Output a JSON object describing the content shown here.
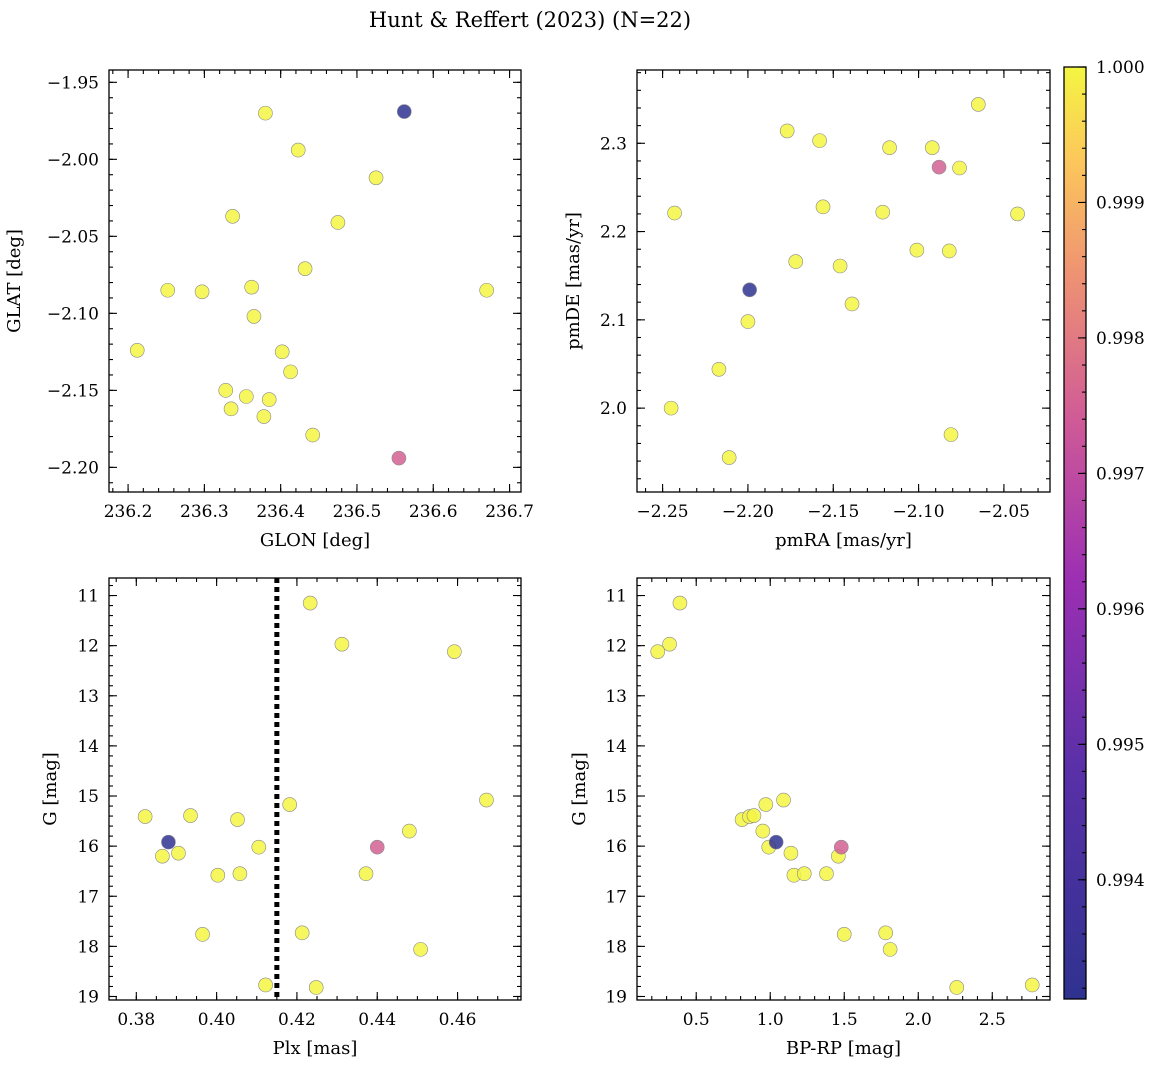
{
  "chart_data": {
    "title": "Hunt & Reffert (2023) (N=22)",
    "type": "scatter",
    "colorbar": {
      "min": 0.99312,
      "max": 1.0,
      "ticks": [
        "1.000",
        "0.999",
        "0.998",
        "0.997",
        "0.996",
        "0.995",
        "0.994"
      ],
      "tick_values": [
        1.0,
        0.999,
        0.998,
        0.997,
        0.996,
        0.995,
        0.994
      ],
      "colormap": "plasma"
    },
    "panels": [
      {
        "id": "glon-glat",
        "xlabel": "GLON [deg]",
        "ylabel": "GLAT [deg]",
        "xlim": [
          236.175,
          236.715
        ],
        "ylim": [
          -2.216,
          -1.942
        ],
        "y_inverted": false,
        "xticks": [
          236.2,
          236.3,
          236.4,
          236.5,
          236.6,
          236.7
        ],
        "xtick_labels": [
          "236.2",
          "236.3",
          "236.4",
          "236.5",
          "236.6",
          "236.7"
        ],
        "yticks": [
          -1.95,
          -2.0,
          -2.05,
          -2.1,
          -2.15,
          -2.2
        ],
        "ytick_labels": [
          "−1.95",
          "−2.00",
          "−2.05",
          "−2.10",
          "−2.15",
          "−2.20"
        ],
        "x": [
          236.562,
          236.555,
          236.38,
          236.423,
          236.525,
          236.337,
          236.475,
          236.432,
          236.252,
          236.297,
          236.362,
          236.67,
          236.365,
          236.212,
          236.402,
          236.413,
          236.328,
          236.355,
          236.385,
          236.335,
          236.378,
          236.442
        ],
        "y": [
          -1.969,
          -2.194,
          -1.97,
          -1.994,
          -2.012,
          -2.037,
          -2.041,
          -2.071,
          -2.085,
          -2.086,
          -2.083,
          -2.085,
          -2.102,
          -2.124,
          -2.125,
          -2.138,
          -2.15,
          -2.154,
          -2.156,
          -2.162,
          -2.167,
          -2.179
        ],
        "c": [
          0.99312,
          0.9975,
          1.0,
          1.0,
          1.0,
          1.0,
          1.0,
          1.0,
          1.0,
          1.0,
          1.0,
          1.0,
          1.0,
          1.0,
          1.0,
          1.0,
          1.0,
          1.0,
          1.0,
          1.0,
          1.0,
          1.0
        ]
      },
      {
        "id": "pmra-pmde",
        "xlabel": "pmRA [mas/yr]",
        "ylabel": "pmDE [mas/yr]",
        "xlim": [
          -2.265,
          -2.023
        ],
        "ylim": [
          1.905,
          2.383
        ],
        "y_inverted": false,
        "xticks": [
          -2.25,
          -2.2,
          -2.15,
          -2.1,
          -2.05
        ],
        "xtick_labels": [
          "−2.25",
          "−2.20",
          "−2.15",
          "−2.10",
          "−2.05"
        ],
        "yticks": [
          2.0,
          2.1,
          2.2,
          2.3
        ],
        "ytick_labels": [
          "2.0",
          "2.1",
          "2.2",
          "2.3"
        ],
        "x": [
          -2.199,
          -2.088,
          -2.065,
          -2.177,
          -2.158,
          -2.117,
          -2.092,
          -2.076,
          -2.243,
          -2.156,
          -2.121,
          -2.042,
          -2.101,
          -2.082,
          -2.172,
          -2.146,
          -2.139,
          -2.2,
          -2.217,
          -2.245,
          -2.081,
          -2.211
        ],
        "y": [
          2.134,
          2.273,
          2.344,
          2.314,
          2.303,
          2.295,
          2.295,
          2.272,
          2.221,
          2.228,
          2.222,
          2.22,
          2.179,
          2.178,
          2.166,
          2.161,
          2.118,
          2.098,
          2.044,
          2.0,
          1.97,
          1.944
        ],
        "c": [
          0.99312,
          0.9975,
          1.0,
          1.0,
          1.0,
          1.0,
          1.0,
          1.0,
          1.0,
          1.0,
          1.0,
          1.0,
          1.0,
          1.0,
          1.0,
          1.0,
          1.0,
          1.0,
          1.0,
          1.0,
          1.0,
          1.0
        ]
      },
      {
        "id": "plx-g",
        "xlabel": "Plx [mas]",
        "ylabel": "G [mag]",
        "xlim": [
          0.3732,
          0.4758
        ],
        "ylim": [
          10.65,
          19.07
        ],
        "y_inverted": true,
        "xticks": [
          0.38,
          0.4,
          0.42,
          0.44,
          0.46
        ],
        "xtick_labels": [
          "0.38",
          "0.40",
          "0.42",
          "0.44",
          "0.46"
        ],
        "yticks": [
          11,
          12,
          13,
          14,
          15,
          16,
          17,
          18,
          19
        ],
        "ytick_labels": [
          "11",
          "12",
          "13",
          "14",
          "15",
          "16",
          "17",
          "18",
          "19"
        ],
        "vline": 0.415,
        "x": [
          0.388,
          0.44,
          0.4233,
          0.4312,
          0.4592,
          0.3822,
          0.3935,
          0.4052,
          0.4182,
          0.4672,
          0.448,
          0.3865,
          0.3905,
          0.4105,
          0.4003,
          0.4058,
          0.4372,
          0.3965,
          0.4213,
          0.4508,
          0.4122,
          0.4248
        ],
        "y": [
          15.92,
          16.02,
          11.15,
          11.97,
          12.12,
          15.41,
          15.39,
          15.47,
          15.17,
          15.08,
          15.7,
          16.2,
          16.14,
          16.02,
          16.58,
          16.55,
          16.55,
          17.76,
          17.73,
          18.06,
          18.77,
          18.82
        ],
        "c": [
          0.99312,
          0.9975,
          1.0,
          1.0,
          1.0,
          1.0,
          1.0,
          1.0,
          1.0,
          1.0,
          1.0,
          1.0,
          1.0,
          1.0,
          1.0,
          1.0,
          1.0,
          1.0,
          1.0,
          1.0,
          1.0,
          1.0
        ]
      },
      {
        "id": "bprp-g",
        "xlabel": "BP-RP [mag]",
        "ylabel": "G [mag]",
        "xlim": [
          0.1,
          2.89
        ],
        "ylim": [
          10.65,
          19.07
        ],
        "y_inverted": true,
        "xticks": [
          0.5,
          1.0,
          1.5,
          2.0,
          2.5
        ],
        "xtick_labels": [
          "0.5",
          "1.0",
          "1.5",
          "2.0",
          "2.5"
        ],
        "yticks": [
          11,
          12,
          13,
          14,
          15,
          16,
          17,
          18,
          19
        ],
        "ytick_labels": [
          "11",
          "12",
          "13",
          "14",
          "15",
          "16",
          "17",
          "18",
          "19"
        ],
        "x": [
          1.04,
          1.48,
          0.39,
          0.32,
          0.24,
          0.81,
          0.86,
          0.89,
          0.97,
          1.09,
          0.95,
          0.99,
          1.14,
          1.46,
          1.16,
          1.23,
          1.38,
          1.5,
          1.78,
          1.81,
          2.26,
          2.77
        ],
        "y": [
          15.92,
          16.02,
          11.15,
          11.97,
          12.12,
          15.47,
          15.41,
          15.39,
          15.17,
          15.08,
          15.7,
          16.02,
          16.14,
          16.2,
          16.58,
          16.55,
          16.55,
          17.76,
          17.73,
          18.06,
          18.82,
          18.77
        ],
        "c": [
          0.99312,
          0.9975,
          1.0,
          1.0,
          1.0,
          1.0,
          1.0,
          1.0,
          1.0,
          1.0,
          1.0,
          1.0,
          1.0,
          1.0,
          1.0,
          1.0,
          1.0,
          1.0,
          1.0,
          1.0,
          1.0,
          1.0
        ]
      }
    ]
  }
}
